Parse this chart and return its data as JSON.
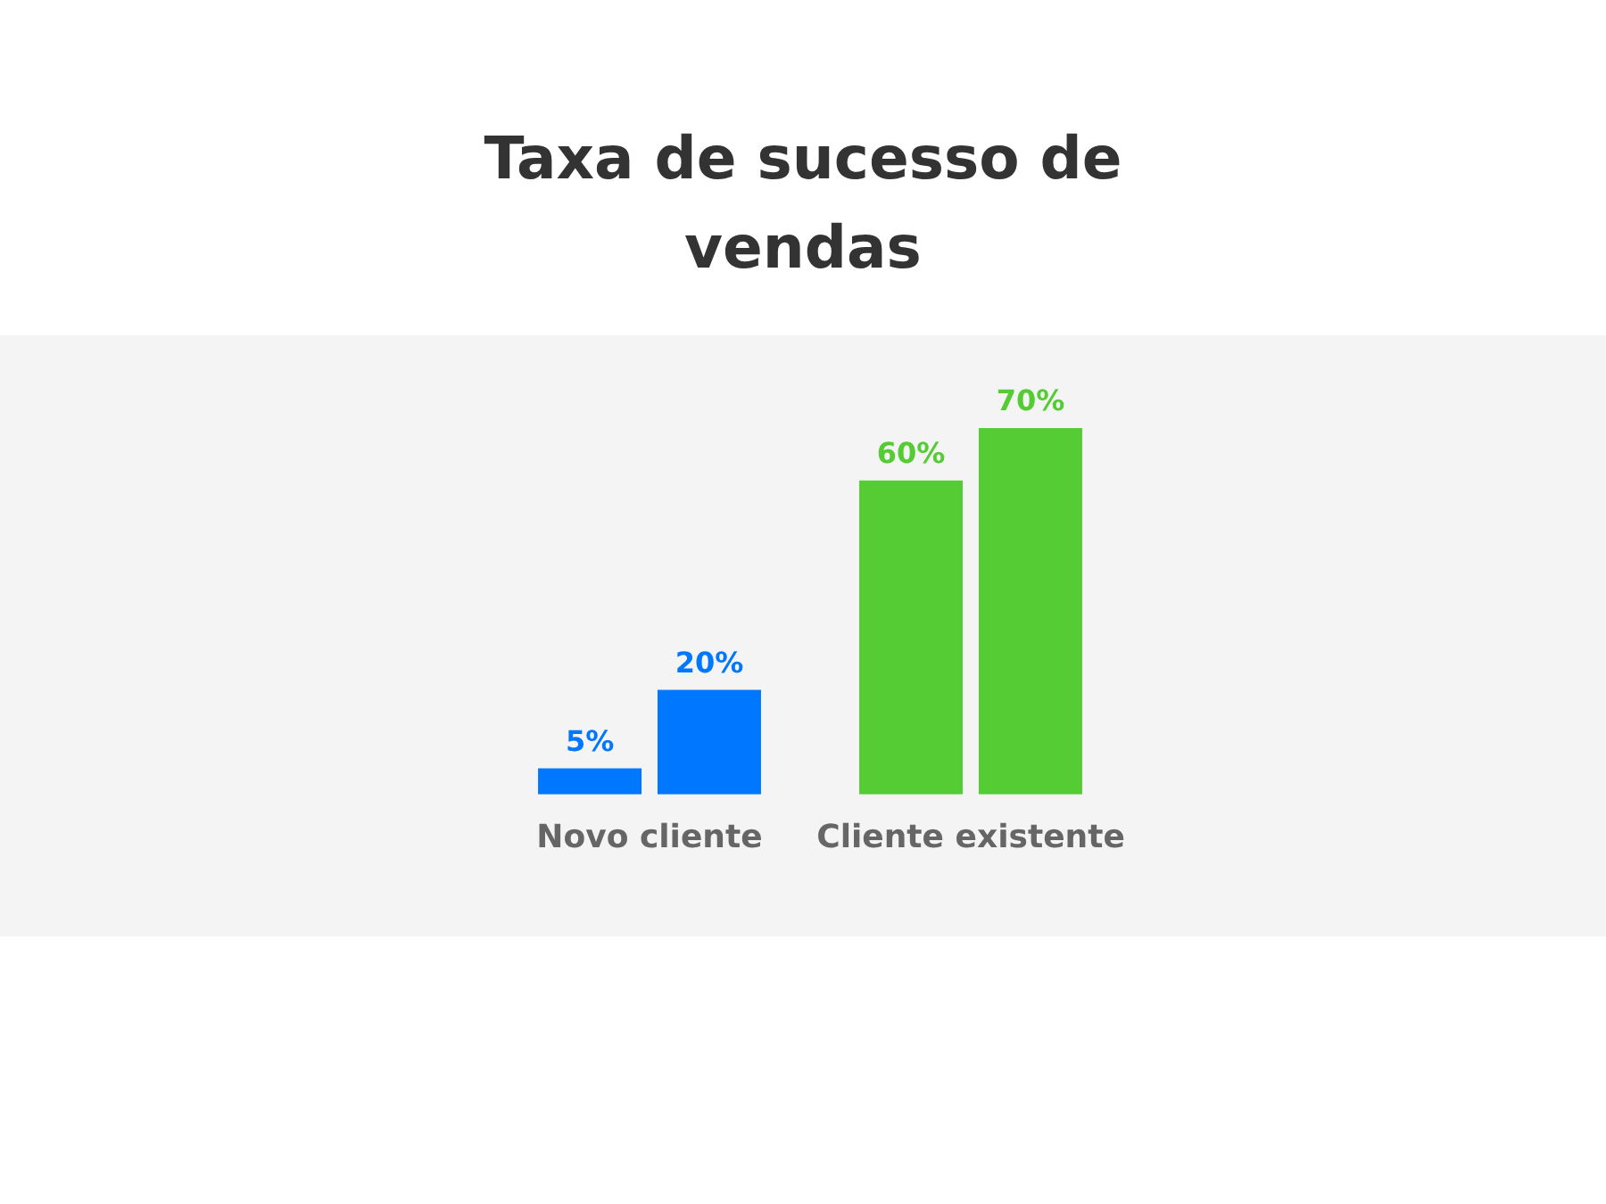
{
  "chart_data": {
    "type": "bar",
    "title": "Taxa de sucesso de vendas",
    "categories": [
      "Novo cliente",
      "Cliente existente"
    ],
    "series": [
      {
        "colors": [
          "#0077ff",
          "#55cc33"
        ],
        "values": [
          5,
          60
        ],
        "value_labels": [
          "5%",
          "60%"
        ]
      },
      {
        "colors": [
          "#0077ff",
          "#55cc33"
        ],
        "values": [
          20,
          70
        ],
        "value_labels": [
          "20%",
          "70%"
        ]
      }
    ],
    "grid": false,
    "legend": false
  }
}
